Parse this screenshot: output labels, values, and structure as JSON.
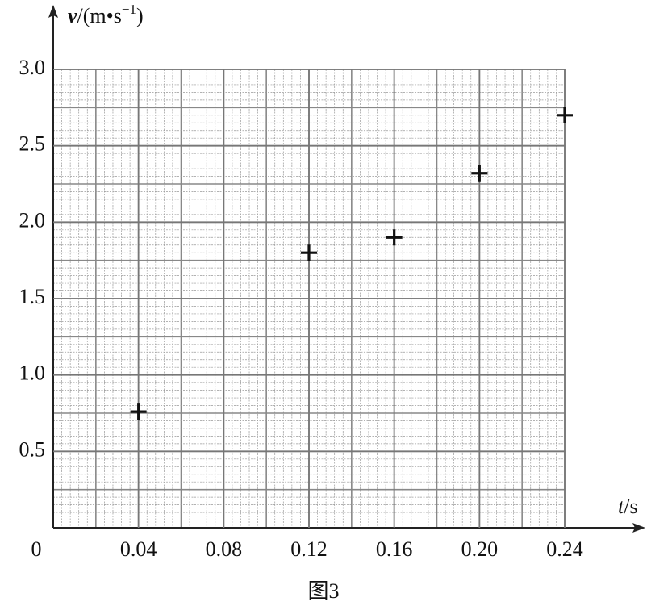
{
  "chart_data": {
    "type": "scatter",
    "y_axis_label": {
      "symbol": "v",
      "unit": "/(m•s",
      "exponent": "−1",
      "close": ")"
    },
    "x_axis_label": {
      "symbol": "t",
      "unit": "/s"
    },
    "caption": "图3",
    "x": [
      0.04,
      0.12,
      0.16,
      0.2,
      0.24
    ],
    "values": [
      0.76,
      1.8,
      1.9,
      2.32,
      2.7
    ],
    "color": "#111111",
    "xlim": [
      0,
      0.24
    ],
    "ylim": [
      0,
      3
    ],
    "xticks": [
      0,
      0.04,
      0.08,
      0.12,
      0.16,
      {
        "value": 0.2,
        "label": "0.20"
      },
      0.24
    ],
    "yticks": [
      0.5,
      {
        "value": 1,
        "label": "1.0"
      },
      1.5,
      {
        "value": 2,
        "label": "2.0"
      },
      2.5,
      {
        "value": 3,
        "label": "3.0"
      }
    ],
    "grid": true
  }
}
